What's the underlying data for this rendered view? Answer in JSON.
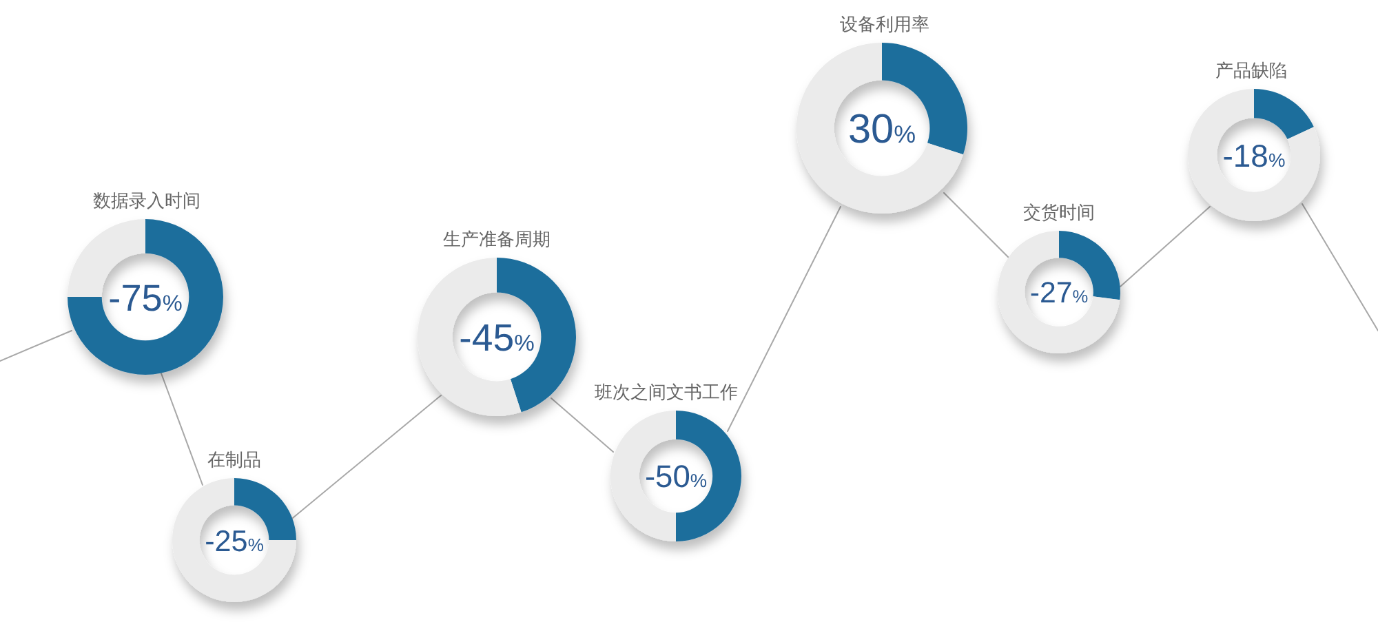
{
  "chart_data": [
    {
      "type": "donut",
      "title": "数据录入时间",
      "categories": [
        null,
        null
      ],
      "values": [
        75,
        25
      ],
      "colors": [
        "#1f6e9c",
        "#ebebeb"
      ],
      "annotations": [
        "-75%"
      ]
    },
    {
      "type": "donut",
      "title": "在制品",
      "categories": [
        null,
        null
      ],
      "values": [
        25,
        75
      ],
      "colors": [
        "#1f6e9c",
        "#ebebeb"
      ],
      "annotations": [
        "-25%"
      ]
    },
    {
      "type": "donut",
      "title": "生产准备周期",
      "categories": [
        null,
        null
      ],
      "values": [
        45,
        55
      ],
      "colors": [
        "#1f6e9c",
        "#ebebeb"
      ],
      "annotations": [
        "-45%"
      ]
    },
    {
      "type": "donut",
      "title": "班次之间文书工作",
      "categories": [
        null,
        null
      ],
      "values": [
        50,
        50
      ],
      "colors": [
        "#1f6e9c",
        "#ebebeb"
      ],
      "annotations": [
        "-50%"
      ]
    },
    {
      "type": "donut",
      "title": "设备利用率",
      "categories": [
        null,
        null
      ],
      "values": [
        30,
        70
      ],
      "colors": [
        "#1f6e9c",
        "#ebebeb"
      ],
      "annotations": [
        "30%"
      ]
    },
    {
      "type": "donut",
      "title": "交货时间",
      "categories": [
        null,
        null
      ],
      "values": [
        27,
        73
      ],
      "colors": [
        "#1f6e9c",
        "#ebebeb"
      ],
      "annotations": [
        "-27%"
      ]
    },
    {
      "type": "donut",
      "title": "产品缺陷",
      "categories": [
        null,
        null
      ],
      "values": [
        18,
        82
      ],
      "colors": [
        "#1f6e9c",
        "#ebebeb"
      ],
      "annotations": [
        "-18%"
      ]
    }
  ]
}
